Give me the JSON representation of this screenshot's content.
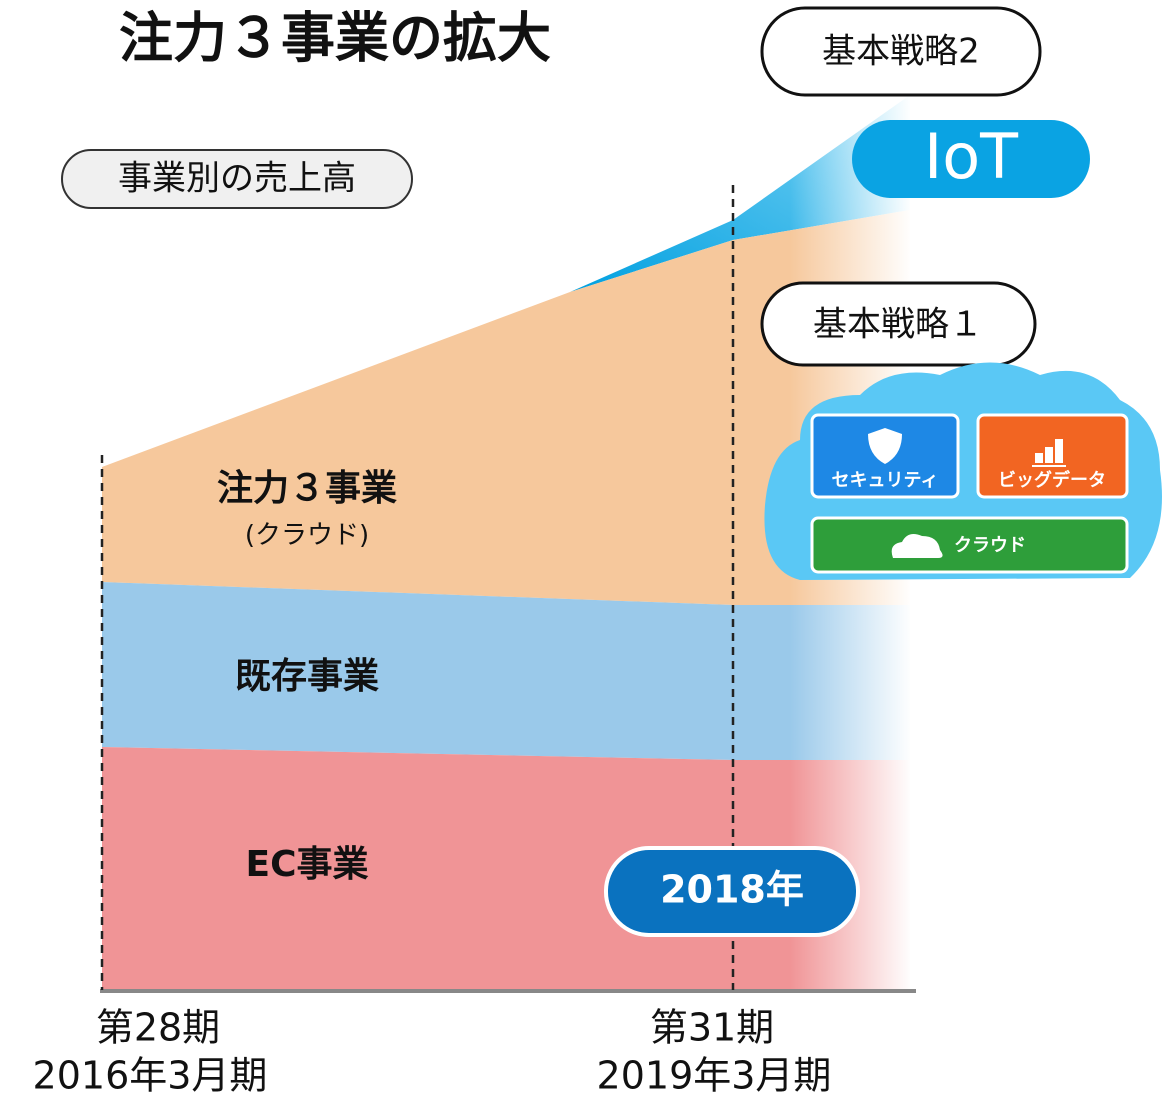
{
  "title": "注力３事業の拡大",
  "subtitle": "事業別の売上高",
  "strategies": {
    "strategy1": "基本戦略１",
    "strategy2": "基本戦略2"
  },
  "iot_label": "IoT",
  "areas": {
    "focus": {
      "label": "注力３事業",
      "sublabel": "(クラウド)"
    },
    "existing": {
      "label": "既存事業"
    },
    "ec": {
      "label": "EC事業"
    }
  },
  "year_badge": "2018年",
  "cloud_tiles": {
    "security": "セキュリティ",
    "bigdata": "ビッグデータ",
    "cloud": "クラウド"
  },
  "x_labels": [
    {
      "period": "第28期",
      "fiscal": "2016年3月期"
    },
    {
      "period": "第31期",
      "fiscal": "2019年3月期"
    }
  ]
}
